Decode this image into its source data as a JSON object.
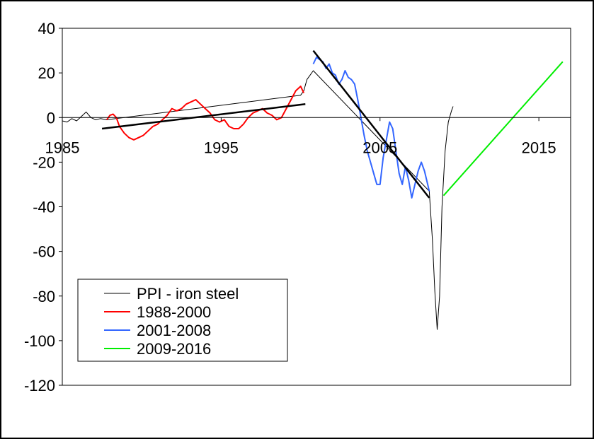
{
  "chart_data": {
    "type": "line",
    "xlim": [
      1985,
      2017
    ],
    "ylim": [
      -120,
      40
    ],
    "x_ticks": [
      1985,
      1995,
      2005,
      2015
    ],
    "y_ticks": [
      40,
      20,
      0,
      -20,
      -40,
      -60,
      -80,
      -100,
      -120
    ],
    "x_tick_labels": [
      "1985",
      "1995",
      "2005",
      "2015"
    ],
    "y_tick_labels": [
      "40",
      "20",
      "0",
      "-20",
      "-40",
      "-60",
      "-80",
      "-100",
      "-120"
    ],
    "grid": false,
    "legend_position": "bottom-left",
    "series": [
      {
        "name": "PPI - iron steel",
        "color": "#000000",
        "points": [
          [
            1985.0,
            -1.5
          ],
          [
            1985.3,
            -2.0
          ],
          [
            1985.6,
            -0.5
          ],
          [
            1985.9,
            -1.5
          ],
          [
            1986.2,
            0.5
          ],
          [
            1986.5,
            2.5
          ],
          [
            1986.8,
            0.0
          ],
          [
            1987.1,
            -1.0
          ],
          [
            1987.4,
            -0.5
          ],
          [
            1987.8,
            -1.0
          ],
          [
            2000.0,
            10.0
          ],
          [
            2000.2,
            12.0
          ],
          [
            2000.4,
            17.0
          ],
          [
            2000.6,
            19.0
          ],
          [
            2000.8,
            21.0
          ],
          [
            2008.1,
            -33.0
          ],
          [
            2008.3,
            -55.0
          ],
          [
            2008.45,
            -78.0
          ],
          [
            2008.6,
            -95.0
          ],
          [
            2008.75,
            -80.0
          ],
          [
            2008.9,
            -40.0
          ],
          [
            2009.1,
            -15.0
          ],
          [
            2009.3,
            -2.0
          ],
          [
            2009.5,
            3.0
          ],
          [
            2009.6,
            5.0
          ]
        ]
      },
      {
        "name": "1988-2000",
        "color": "#ff0000",
        "points": [
          [
            1987.8,
            -1.0
          ],
          [
            1988.0,
            1.0
          ],
          [
            1988.2,
            1.5
          ],
          [
            1988.4,
            0.0
          ],
          [
            1988.6,
            -4.0
          ],
          [
            1988.9,
            -7.0
          ],
          [
            1989.2,
            -9.0
          ],
          [
            1989.5,
            -10.0
          ],
          [
            1989.8,
            -9.0
          ],
          [
            1990.1,
            -8.0
          ],
          [
            1990.4,
            -6.0
          ],
          [
            1990.7,
            -4.0
          ],
          [
            1991.0,
            -3.0
          ],
          [
            1991.3,
            -1.0
          ],
          [
            1991.6,
            1.0
          ],
          [
            1991.9,
            4.0
          ],
          [
            1992.2,
            3.0
          ],
          [
            1992.5,
            4.0
          ],
          [
            1992.8,
            6.0
          ],
          [
            1993.1,
            7.0
          ],
          [
            1993.4,
            8.0
          ],
          [
            1993.7,
            6.0
          ],
          [
            1994.0,
            4.0
          ],
          [
            1994.3,
            2.0
          ],
          [
            1994.6,
            -1.0
          ],
          [
            1994.9,
            -2.0
          ],
          [
            1995.2,
            -1.0
          ],
          [
            1995.5,
            -4.0
          ],
          [
            1995.8,
            -5.0
          ],
          [
            1996.1,
            -5.0
          ],
          [
            1996.4,
            -3.0
          ],
          [
            1996.7,
            0.0
          ],
          [
            1997.0,
            2.0
          ],
          [
            1997.3,
            3.0
          ],
          [
            1997.6,
            4.0
          ],
          [
            1997.9,
            2.0
          ],
          [
            1998.2,
            1.0
          ],
          [
            1998.5,
            -1.0
          ],
          [
            1998.8,
            0.0
          ],
          [
            1999.1,
            4.0
          ],
          [
            1999.4,
            8.0
          ],
          [
            1999.7,
            12.0
          ],
          [
            2000.0,
            14.0
          ],
          [
            2000.2,
            11.0
          ]
        ]
      },
      {
        "name": "2001-2008",
        "color": "#3366ff",
        "points": [
          [
            2000.8,
            24.0
          ],
          [
            2001.0,
            27.0
          ],
          [
            2001.2,
            26.0
          ],
          [
            2001.4,
            25.0
          ],
          [
            2001.6,
            22.0
          ],
          [
            2001.8,
            24.0
          ],
          [
            2002.0,
            20.0
          ],
          [
            2002.2,
            19.0
          ],
          [
            2002.4,
            15.0
          ],
          [
            2002.6,
            17.0
          ],
          [
            2002.8,
            21.0
          ],
          [
            2003.0,
            18.0
          ],
          [
            2003.2,
            17.0
          ],
          [
            2003.4,
            15.0
          ],
          [
            2003.6,
            8.0
          ],
          [
            2003.8,
            0.0
          ],
          [
            2004.0,
            -8.0
          ],
          [
            2004.2,
            -15.0
          ],
          [
            2004.4,
            -20.0
          ],
          [
            2004.6,
            -25.0
          ],
          [
            2004.8,
            -30.0
          ],
          [
            2005.0,
            -30.0
          ],
          [
            2005.2,
            -18.0
          ],
          [
            2005.4,
            -10.0
          ],
          [
            2005.6,
            -2.0
          ],
          [
            2005.8,
            -5.0
          ],
          [
            2006.0,
            -15.0
          ],
          [
            2006.2,
            -25.0
          ],
          [
            2006.4,
            -30.0
          ],
          [
            2006.6,
            -22.0
          ],
          [
            2006.8,
            -28.0
          ],
          [
            2007.0,
            -36.0
          ],
          [
            2007.2,
            -30.0
          ],
          [
            2007.4,
            -24.0
          ],
          [
            2007.6,
            -20.0
          ],
          [
            2007.8,
            -24.0
          ],
          [
            2008.0,
            -30.0
          ],
          [
            2008.1,
            -33.0
          ]
        ]
      },
      {
        "name": "2009-2016",
        "color": "#00ee00",
        "points": [
          [
            2009.0,
            -35.0
          ],
          [
            2016.5,
            25.0
          ]
        ]
      },
      {
        "name": "trend 1988-2000",
        "color": "#000000",
        "legend": false,
        "points": [
          [
            1987.5,
            -5.0
          ],
          [
            2000.3,
            6.0
          ]
        ]
      },
      {
        "name": "trend 2001-2008",
        "color": "#000000",
        "legend": false,
        "points": [
          [
            2000.8,
            30.0
          ],
          [
            2008.1,
            -36.0
          ]
        ]
      }
    ],
    "legend_entries": [
      "PPI - iron steel",
      "1988-2000",
      "2001-2008",
      "2009-2016"
    ]
  }
}
